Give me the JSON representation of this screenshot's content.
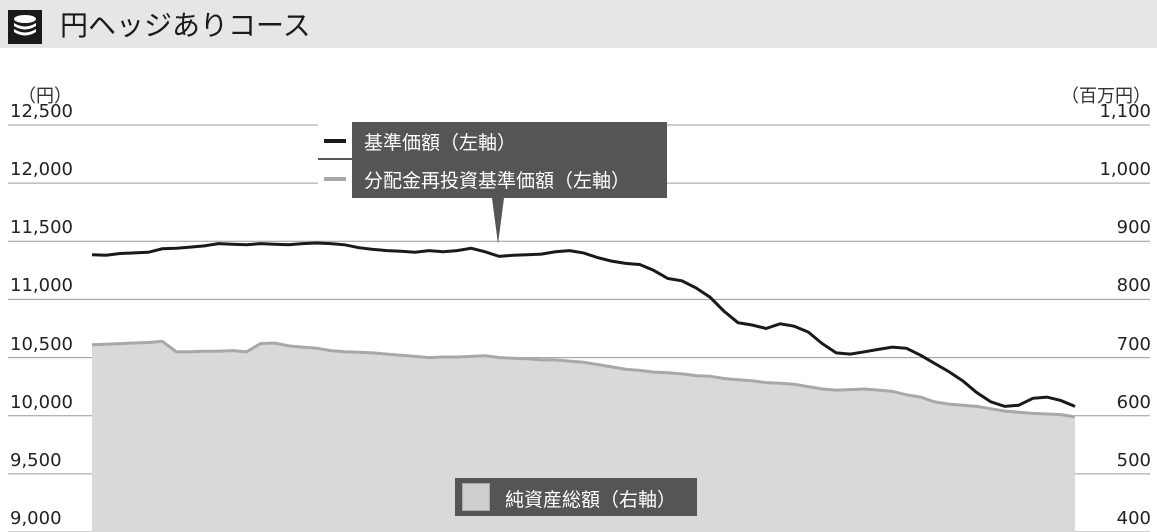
{
  "header": {
    "title": "円ヘッジありコース",
    "icon": "coins-stack-icon"
  },
  "chart_data": {
    "type": "line",
    "x": [
      0,
      1,
      2,
      3,
      4,
      5,
      6,
      7,
      8,
      9,
      10,
      11,
      12,
      13,
      14,
      15,
      16,
      17,
      18,
      19,
      20,
      21,
      22,
      23,
      24,
      25,
      26,
      27,
      28,
      29,
      30,
      31,
      32,
      33,
      34,
      35,
      36,
      37,
      38,
      39,
      40,
      41,
      42,
      43,
      44,
      45,
      46,
      47,
      48,
      49,
      50,
      51,
      52,
      53,
      54,
      55,
      56,
      57,
      58,
      59,
      60,
      61,
      62,
      63,
      64,
      65,
      66,
      67,
      68,
      69,
      70
    ],
    "left_axis": {
      "unit": "（円）",
      "ticks": [
        "12,500",
        "12,000",
        "11,500",
        "11,000",
        "10,500",
        "10,000",
        "9,500",
        "9,000"
      ],
      "ylim": [
        9000,
        12500
      ]
    },
    "right_axis": {
      "unit": "（百万円）",
      "ticks": [
        "1,100",
        "1,000",
        "900",
        "800",
        "700",
        "600",
        "500",
        "400"
      ],
      "ylim": [
        400,
        1100
      ]
    },
    "grid": true,
    "series": [
      {
        "name": "基準価額（左軸）",
        "axis": "left",
        "color": "#1a1a1a",
        "values": [
          11385,
          11380,
          11395,
          11400,
          11405,
          11435,
          11440,
          11450,
          11460,
          11480,
          11475,
          11470,
          11480,
          11475,
          11470,
          11480,
          11485,
          11480,
          11470,
          11445,
          11430,
          11420,
          11415,
          11405,
          11420,
          11410,
          11420,
          11440,
          11410,
          11370,
          11380,
          11385,
          11390,
          11410,
          11420,
          11400,
          11360,
          11330,
          11310,
          11300,
          11250,
          11180,
          11160,
          11100,
          11020,
          10900,
          10800,
          10780,
          10750,
          10790,
          10770,
          10720,
          10620,
          10540,
          10530,
          10550,
          10570,
          10590,
          10580,
          10520,
          10450,
          10380,
          10300,
          10200,
          10120,
          10080,
          10090,
          10150,
          10160,
          10130,
          10080
        ]
      },
      {
        "name": "分配金再投資基準価額（左軸）",
        "axis": "left",
        "color": "#a8a8a8",
        "values": [
          10610,
          10615,
          10620,
          10625,
          10630,
          10640,
          10550,
          10550,
          10555,
          10555,
          10560,
          10550,
          10620,
          10625,
          10600,
          10590,
          10580,
          10560,
          10550,
          10545,
          10540,
          10530,
          10520,
          10510,
          10500,
          10505,
          10505,
          10510,
          10515,
          10500,
          10495,
          10490,
          10480,
          10480,
          10470,
          10460,
          10440,
          10420,
          10400,
          10390,
          10375,
          10370,
          10360,
          10345,
          10340,
          10320,
          10310,
          10300,
          10285,
          10280,
          10270,
          10250,
          10230,
          10220,
          10225,
          10230,
          10220,
          10210,
          10180,
          10160,
          10120,
          10100,
          10090,
          10080,
          10060,
          10040,
          10030,
          10020,
          10015,
          10010,
          9990
        ]
      },
      {
        "name": "純資産総額（右軸）",
        "axis": "right",
        "color": "#d9d9d9",
        "type": "area",
        "values": [
          721,
          722,
          723,
          724,
          725,
          727,
          710,
          710,
          711,
          711,
          712,
          710,
          724,
          725,
          720,
          718,
          716,
          712,
          710,
          709,
          708,
          706,
          704,
          702,
          700,
          701,
          701,
          702,
          703,
          700,
          699,
          698,
          696,
          696,
          694,
          692,
          688,
          684,
          680,
          678,
          675,
          674,
          672,
          669,
          668,
          664,
          662,
          660,
          657,
          656,
          654,
          650,
          646,
          644,
          645,
          646,
          644,
          642,
          636,
          632,
          624,
          620,
          618,
          616,
          612,
          608,
          606,
          604,
          603,
          602,
          598
        ]
      }
    ]
  },
  "legend_series_1": "基準価額（左軸）",
  "legend_series_2": "分配金再投資基準価額（左軸）",
  "legend_series_3": "純資産総額（右軸）"
}
